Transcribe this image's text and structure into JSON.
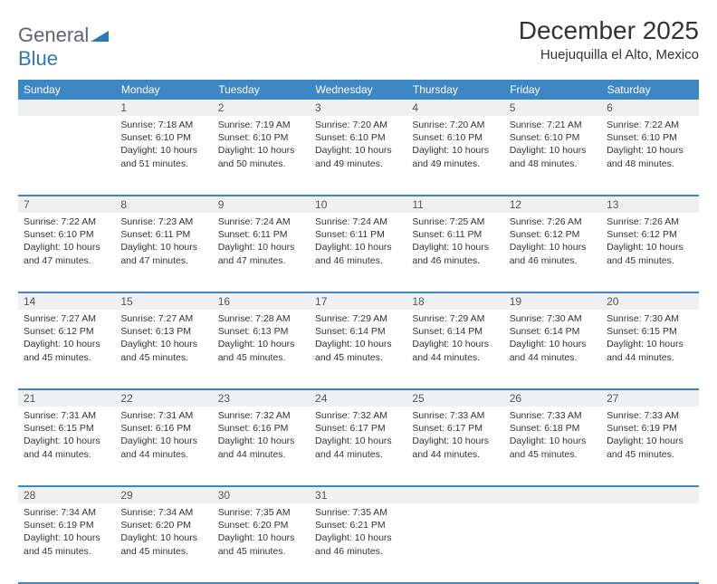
{
  "brand": {
    "name_part1": "General",
    "name_part2": "Blue"
  },
  "title": "December 2025",
  "location": "Huejuquilla el Alto, Mexico",
  "colors": {
    "header_bg": "#3d87c7",
    "header_text": "#ffffff",
    "daynum_bg": "#eef0f1",
    "row_divider": "#3d87c7",
    "body_text": "#333333",
    "brand_gray": "#5a6570",
    "brand_blue": "#2e77b8",
    "page_bg": "#ffffff"
  },
  "day_headers": [
    "Sunday",
    "Monday",
    "Tuesday",
    "Wednesday",
    "Thursday",
    "Friday",
    "Saturday"
  ],
  "weeks": [
    {
      "nums": [
        "",
        "1",
        "2",
        "3",
        "4",
        "5",
        "6"
      ],
      "cells": [
        {
          "sunrise": "",
          "sunset": "",
          "daylight": ""
        },
        {
          "sunrise": "Sunrise: 7:18 AM",
          "sunset": "Sunset: 6:10 PM",
          "daylight": "Daylight: 10 hours and 51 minutes."
        },
        {
          "sunrise": "Sunrise: 7:19 AM",
          "sunset": "Sunset: 6:10 PM",
          "daylight": "Daylight: 10 hours and 50 minutes."
        },
        {
          "sunrise": "Sunrise: 7:20 AM",
          "sunset": "Sunset: 6:10 PM",
          "daylight": "Daylight: 10 hours and 49 minutes."
        },
        {
          "sunrise": "Sunrise: 7:20 AM",
          "sunset": "Sunset: 6:10 PM",
          "daylight": "Daylight: 10 hours and 49 minutes."
        },
        {
          "sunrise": "Sunrise: 7:21 AM",
          "sunset": "Sunset: 6:10 PM",
          "daylight": "Daylight: 10 hours and 48 minutes."
        },
        {
          "sunrise": "Sunrise: 7:22 AM",
          "sunset": "Sunset: 6:10 PM",
          "daylight": "Daylight: 10 hours and 48 minutes."
        }
      ]
    },
    {
      "nums": [
        "7",
        "8",
        "9",
        "10",
        "11",
        "12",
        "13"
      ],
      "cells": [
        {
          "sunrise": "Sunrise: 7:22 AM",
          "sunset": "Sunset: 6:10 PM",
          "daylight": "Daylight: 10 hours and 47 minutes."
        },
        {
          "sunrise": "Sunrise: 7:23 AM",
          "sunset": "Sunset: 6:11 PM",
          "daylight": "Daylight: 10 hours and 47 minutes."
        },
        {
          "sunrise": "Sunrise: 7:24 AM",
          "sunset": "Sunset: 6:11 PM",
          "daylight": "Daylight: 10 hours and 47 minutes."
        },
        {
          "sunrise": "Sunrise: 7:24 AM",
          "sunset": "Sunset: 6:11 PM",
          "daylight": "Daylight: 10 hours and 46 minutes."
        },
        {
          "sunrise": "Sunrise: 7:25 AM",
          "sunset": "Sunset: 6:11 PM",
          "daylight": "Daylight: 10 hours and 46 minutes."
        },
        {
          "sunrise": "Sunrise: 7:26 AM",
          "sunset": "Sunset: 6:12 PM",
          "daylight": "Daylight: 10 hours and 46 minutes."
        },
        {
          "sunrise": "Sunrise: 7:26 AM",
          "sunset": "Sunset: 6:12 PM",
          "daylight": "Daylight: 10 hours and 45 minutes."
        }
      ]
    },
    {
      "nums": [
        "14",
        "15",
        "16",
        "17",
        "18",
        "19",
        "20"
      ],
      "cells": [
        {
          "sunrise": "Sunrise: 7:27 AM",
          "sunset": "Sunset: 6:12 PM",
          "daylight": "Daylight: 10 hours and 45 minutes."
        },
        {
          "sunrise": "Sunrise: 7:27 AM",
          "sunset": "Sunset: 6:13 PM",
          "daylight": "Daylight: 10 hours and 45 minutes."
        },
        {
          "sunrise": "Sunrise: 7:28 AM",
          "sunset": "Sunset: 6:13 PM",
          "daylight": "Daylight: 10 hours and 45 minutes."
        },
        {
          "sunrise": "Sunrise: 7:29 AM",
          "sunset": "Sunset: 6:14 PM",
          "daylight": "Daylight: 10 hours and 45 minutes."
        },
        {
          "sunrise": "Sunrise: 7:29 AM",
          "sunset": "Sunset: 6:14 PM",
          "daylight": "Daylight: 10 hours and 44 minutes."
        },
        {
          "sunrise": "Sunrise: 7:30 AM",
          "sunset": "Sunset: 6:14 PM",
          "daylight": "Daylight: 10 hours and 44 minutes."
        },
        {
          "sunrise": "Sunrise: 7:30 AM",
          "sunset": "Sunset: 6:15 PM",
          "daylight": "Daylight: 10 hours and 44 minutes."
        }
      ]
    },
    {
      "nums": [
        "21",
        "22",
        "23",
        "24",
        "25",
        "26",
        "27"
      ],
      "cells": [
        {
          "sunrise": "Sunrise: 7:31 AM",
          "sunset": "Sunset: 6:15 PM",
          "daylight": "Daylight: 10 hours and 44 minutes."
        },
        {
          "sunrise": "Sunrise: 7:31 AM",
          "sunset": "Sunset: 6:16 PM",
          "daylight": "Daylight: 10 hours and 44 minutes."
        },
        {
          "sunrise": "Sunrise: 7:32 AM",
          "sunset": "Sunset: 6:16 PM",
          "daylight": "Daylight: 10 hours and 44 minutes."
        },
        {
          "sunrise": "Sunrise: 7:32 AM",
          "sunset": "Sunset: 6:17 PM",
          "daylight": "Daylight: 10 hours and 44 minutes."
        },
        {
          "sunrise": "Sunrise: 7:33 AM",
          "sunset": "Sunset: 6:17 PM",
          "daylight": "Daylight: 10 hours and 44 minutes."
        },
        {
          "sunrise": "Sunrise: 7:33 AM",
          "sunset": "Sunset: 6:18 PM",
          "daylight": "Daylight: 10 hours and 45 minutes."
        },
        {
          "sunrise": "Sunrise: 7:33 AM",
          "sunset": "Sunset: 6:19 PM",
          "daylight": "Daylight: 10 hours and 45 minutes."
        }
      ]
    },
    {
      "nums": [
        "28",
        "29",
        "30",
        "31",
        "",
        "",
        ""
      ],
      "cells": [
        {
          "sunrise": "Sunrise: 7:34 AM",
          "sunset": "Sunset: 6:19 PM",
          "daylight": "Daylight: 10 hours and 45 minutes."
        },
        {
          "sunrise": "Sunrise: 7:34 AM",
          "sunset": "Sunset: 6:20 PM",
          "daylight": "Daylight: 10 hours and 45 minutes."
        },
        {
          "sunrise": "Sunrise: 7:35 AM",
          "sunset": "Sunset: 6:20 PM",
          "daylight": "Daylight: 10 hours and 45 minutes."
        },
        {
          "sunrise": "Sunrise: 7:35 AM",
          "sunset": "Sunset: 6:21 PM",
          "daylight": "Daylight: 10 hours and 46 minutes."
        },
        {
          "sunrise": "",
          "sunset": "",
          "daylight": ""
        },
        {
          "sunrise": "",
          "sunset": "",
          "daylight": ""
        },
        {
          "sunrise": "",
          "sunset": "",
          "daylight": ""
        }
      ]
    }
  ]
}
